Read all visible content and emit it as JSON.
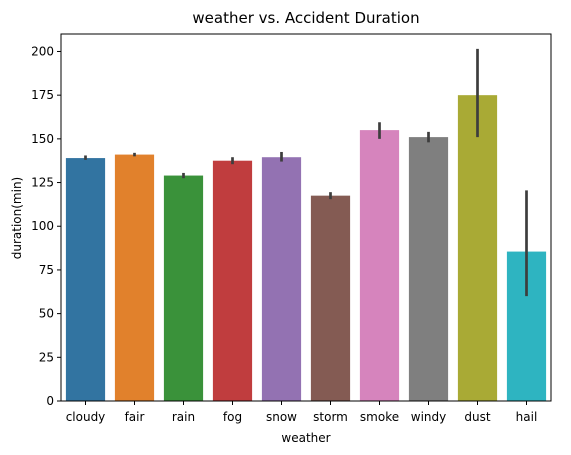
{
  "chart_data": {
    "type": "bar",
    "title": "weather vs. Accident Duration",
    "xlabel": "weather",
    "ylabel": "duration(min)",
    "ylim": [
      0,
      210
    ],
    "yticks": [
      0,
      25,
      50,
      75,
      100,
      125,
      150,
      175,
      200
    ],
    "grid": false,
    "categories": [
      "cloudy",
      "fair",
      "rain",
      "fog",
      "snow",
      "storm",
      "smoke",
      "windy",
      "dust",
      "hail"
    ],
    "values": [
      139,
      141,
      129,
      137.5,
      139.5,
      117.5,
      155,
      151,
      175,
      85.5
    ],
    "error_low": [
      138,
      140,
      127.5,
      135.5,
      137,
      115.5,
      150,
      148,
      151,
      60
    ],
    "error_high": [
      140.5,
      142,
      130.5,
      139.5,
      142.5,
      119.5,
      159.5,
      154,
      201.5,
      120.5
    ],
    "colors": [
      "#3274a1",
      "#e1812c",
      "#3a923a",
      "#c03d3e",
      "#9372b2",
      "#845b53",
      "#d684bd",
      "#7f7f7f",
      "#a9aa35",
      "#2eb4c1"
    ]
  }
}
